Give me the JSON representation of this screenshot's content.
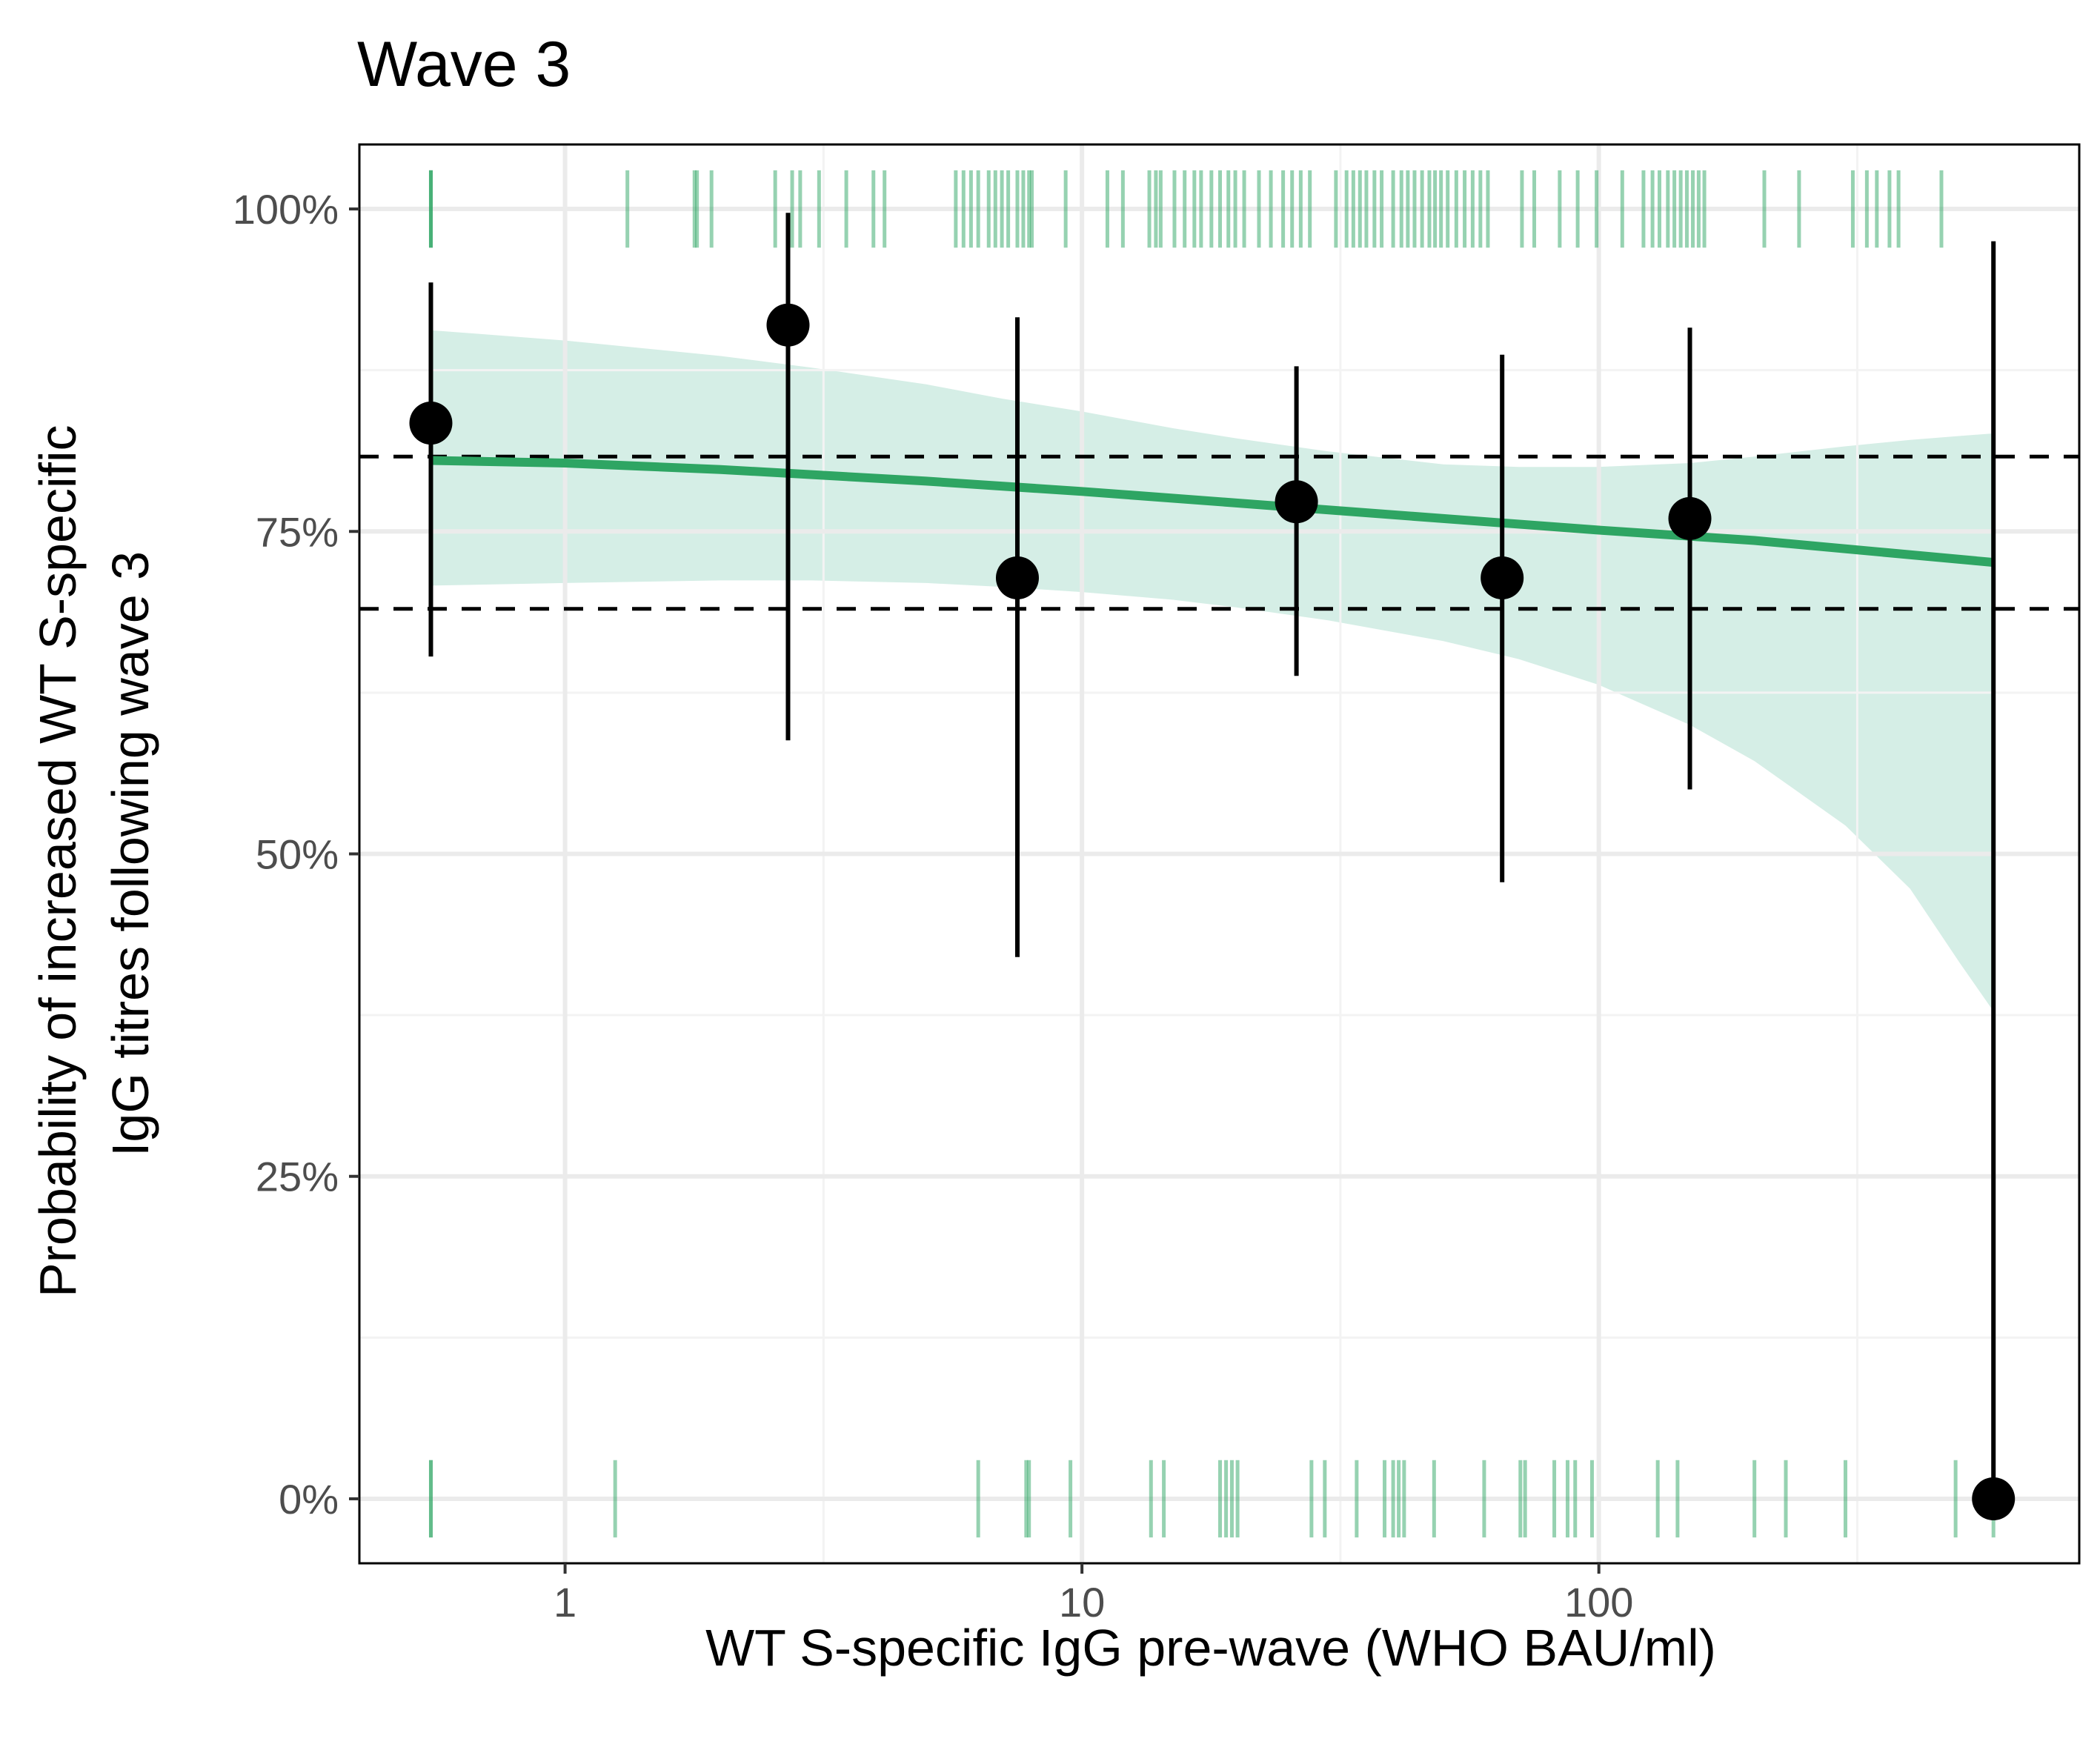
{
  "chart_data": {
    "type": "scatter",
    "title": "Wave 3",
    "xlabel": "WT S-specific IgG pre-wave (WHO BAU/ml)",
    "ylabel_lines": [
      "Probability of increased WT S-specific",
      "IgG titres following wave 3"
    ],
    "x_scale": "log10",
    "xlim": [
      0.4,
      850
    ],
    "ylim": [
      -0.05,
      1.05
    ],
    "x_ticks": [
      {
        "value": 1,
        "label": "1"
      },
      {
        "value": 10,
        "label": "10"
      },
      {
        "value": 100,
        "label": "100"
      }
    ],
    "y_ticks": [
      {
        "value": 0,
        "label": "0%"
      },
      {
        "value": 0.25,
        "label": "25%"
      },
      {
        "value": 0.5,
        "label": "50%"
      },
      {
        "value": 0.75,
        "label": "75%"
      },
      {
        "value": 1,
        "label": "100%"
      }
    ],
    "grid": true,
    "reference_lines": [
      0.808,
      0.69
    ],
    "binned_points": [
      {
        "x": 0.55,
        "y": 0.834,
        "lower": 0.653,
        "upper": 0.943
      },
      {
        "x": 2.7,
        "y": 0.91,
        "lower": 0.588,
        "upper": 0.997
      },
      {
        "x": 7.5,
        "y": 0.714,
        "lower": 0.42,
        "upper": 0.916
      },
      {
        "x": 26,
        "y": 0.773,
        "lower": 0.638,
        "upper": 0.878
      },
      {
        "x": 65,
        "y": 0.714,
        "lower": 0.478,
        "upper": 0.887
      },
      {
        "x": 150,
        "y": 0.76,
        "lower": 0.55,
        "upper": 0.908
      },
      {
        "x": 580,
        "y": 0.0,
        "lower": 0.0,
        "upper": 0.975
      }
    ],
    "fit_line": {
      "x": [
        0.55,
        1,
        2,
        5,
        10,
        20,
        50,
        100,
        200,
        580
      ],
      "y": [
        0.805,
        0.803,
        0.798,
        0.789,
        0.781,
        0.772,
        0.76,
        0.751,
        0.743,
        0.726
      ]
    },
    "fit_ribbon": {
      "x": [
        0.55,
        1,
        2,
        3,
        5,
        7,
        10,
        15,
        20,
        30,
        50,
        70,
        100,
        150,
        200,
        300,
        400,
        500,
        580
      ],
      "lower": [
        0.708,
        0.71,
        0.712,
        0.712,
        0.71,
        0.707,
        0.703,
        0.697,
        0.691,
        0.681,
        0.665,
        0.651,
        0.631,
        0.6,
        0.572,
        0.522,
        0.473,
        0.415,
        0.378
      ],
      "upper": [
        0.906,
        0.898,
        0.886,
        0.877,
        0.864,
        0.853,
        0.843,
        0.83,
        0.822,
        0.812,
        0.802,
        0.8,
        0.8,
        0.803,
        0.808,
        0.816,
        0.821,
        0.824,
        0.826
      ]
    },
    "rug_positive_x": [
      0.55,
      0.55,
      0.55,
      1.32,
      1.78,
      1.8,
      1.92,
      2.55,
      2.75,
      2.85,
      3.1,
      3.5,
      3.95,
      4.15,
      5.7,
      5.9,
      6.1,
      6.3,
      6.6,
      6.8,
      7.0,
      7.2,
      7.5,
      7.7,
      7.9,
      8.0,
      9.3,
      11.2,
      12.0,
      13.5,
      13.9,
      14.2,
      15.1,
      15.8,
      16.5,
      17.0,
      17.8,
      18.5,
      19.2,
      19.8,
      20.6,
      22.0,
      23.2,
      24.5,
      25.5,
      26.5,
      27.6,
      31.0,
      32.5,
      33.5,
      34.5,
      35.5,
      36.8,
      38.0,
      40.0,
      41.5,
      42.7,
      44.0,
      45.5,
      47.0,
      48.2,
      49.5,
      51.0,
      53.0,
      55.0,
      57.0,
      59.0,
      61.0,
      71.0,
      75.0,
      84.0,
      91.0,
      99.0,
      111.0,
      122.0,
      127.0,
      131.0,
      136.0,
      140.0,
      144.0,
      148.0,
      152.0,
      156.0,
      160.0,
      209.0,
      244.0,
      310.0,
      330.0,
      345.0,
      365.0,
      380.0,
      460.0
    ],
    "rug_negative_x": [
      0.55,
      0.55,
      1.25,
      6.3,
      7.8,
      7.9,
      9.5,
      13.6,
      14.4,
      18.5,
      19.0,
      19.5,
      20.0,
      27.8,
      29.5,
      34.0,
      38.5,
      40.0,
      41.0,
      42.0,
      48.0,
      60.0,
      70.5,
      72.0,
      82.0,
      87.0,
      90.0,
      97.0,
      130.0,
      142.0,
      200.0,
      230.0,
      300.0,
      490.0,
      580.0
    ],
    "colors": {
      "fit_line": "#2ea563",
      "ribbon": "#d5eee6",
      "rug": "#2ea563",
      "points": "#000000",
      "reference_lines": "#000000",
      "grid_major": "#ebebeb",
      "grid_minor": "#f3f3f3"
    }
  }
}
